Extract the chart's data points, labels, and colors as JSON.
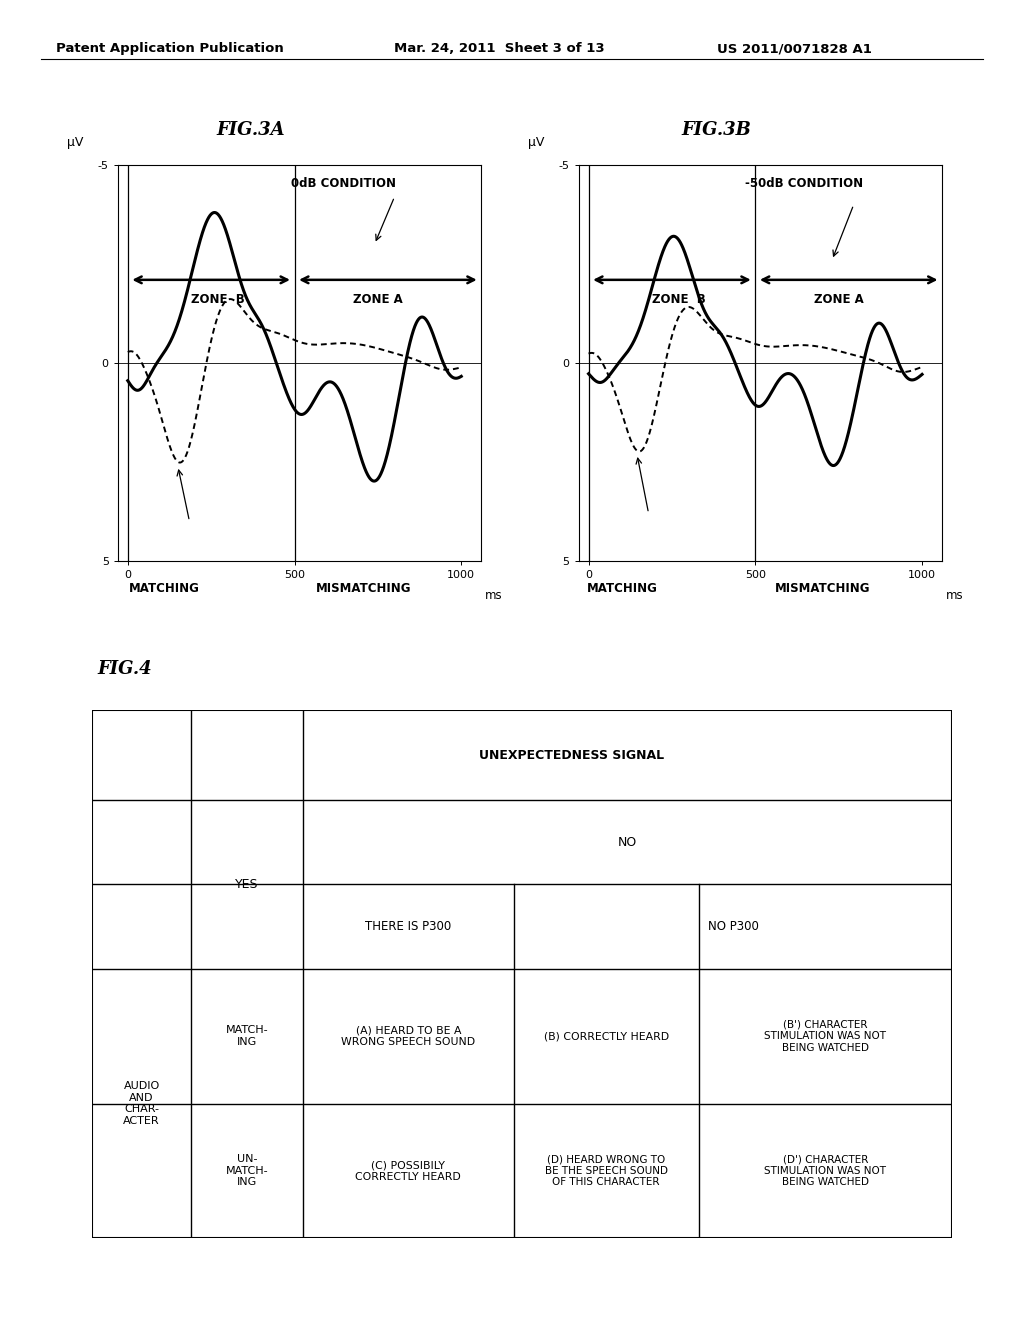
{
  "header_left": "Patent Application Publication",
  "header_center": "Mar. 24, 2011  Sheet 3 of 13",
  "header_right": "US 2011/0071828 A1",
  "fig3a_title": "FIG.3A",
  "fig3b_title": "FIG.3B",
  "fig4_title": "FIG.4",
  "condition_a": "0dB CONDITION",
  "condition_b": "-50dB CONDITION",
  "ylabel": "μV",
  "xlabel": "ms",
  "zone_b_label": "ZONE  B",
  "zone_a_label": "ZONE A",
  "matching_label": "MATCHING",
  "mismatching_label": "MISMATCHING",
  "background": "#ffffff",
  "table_header1": "UNEXPECTEDNESS SIGNAL",
  "table_yes": "YES",
  "table_no": "NO",
  "table_p300": "THERE IS P300",
  "table_no_p300": "NO P300",
  "row_audio": "AUDIO\nAND\nCHAR-\nACTER",
  "row_match": "MATCH-\nING",
  "row_unmatch": "UN-\nMATCH-\nING",
  "cell_A": "(A) HEARD TO BE A\nWRONG SPEECH SOUND",
  "cell_B": "(B) CORRECTLY HEARD",
  "cell_Bprime": "(B') CHARACTER\nSTIMULATION WAS NOT\nBEING WATCHED",
  "cell_C": "(C) POSSIBILY\nCORRECTLY HEARD",
  "cell_D": "(D) HEARD WRONG TO\nBE THE SPEECH SOUND\nOF THIS CHARACTER",
  "cell_Dprime": "(D') CHARACTER\nSTIMULATION WAS NOT\nBEING WATCHED"
}
